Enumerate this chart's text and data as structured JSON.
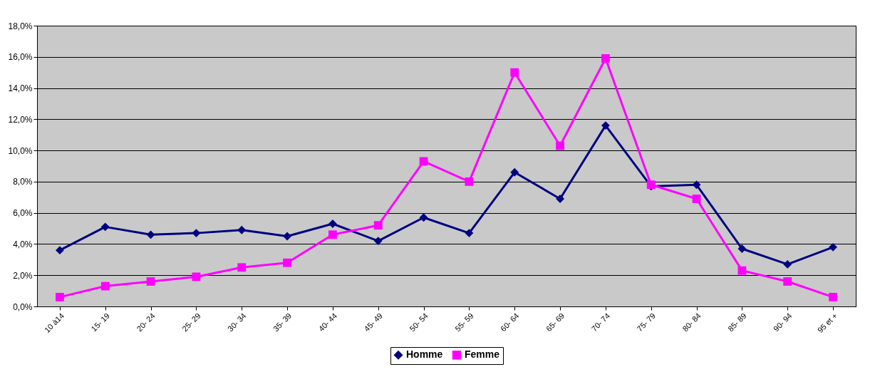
{
  "chart_data": {
    "type": "line",
    "categories": [
      "10 à14",
      "15- 19",
      "20- 24",
      "25- 29",
      "30- 34",
      "35- 39",
      "40- 44",
      "45- 49",
      "50- 54",
      "55- 59",
      "60- 64",
      "65- 69",
      "70- 74",
      "75- 79",
      "80- 84",
      "85- 89",
      "90- 94",
      "95 et +"
    ],
    "series": [
      {
        "name": "Homme",
        "color": "#000080",
        "marker": "diamond",
        "values": [
          3.6,
          5.1,
          4.6,
          4.7,
          4.9,
          4.5,
          5.3,
          4.2,
          5.7,
          4.7,
          8.6,
          6.9,
          11.6,
          7.7,
          7.8,
          3.7,
          2.7,
          3.8
        ]
      },
      {
        "name": "Femme",
        "color": "#ff00ff",
        "marker": "square",
        "values": [
          0.6,
          1.3,
          1.6,
          1.9,
          2.5,
          2.8,
          4.6,
          5.2,
          9.3,
          8.0,
          15.0,
          10.3,
          15.9,
          7.8,
          6.9,
          2.3,
          1.6,
          0.6
        ]
      }
    ],
    "ylim": [
      0,
      18
    ],
    "yticks": [
      {
        "value": 0,
        "label": "0,0%"
      },
      {
        "value": 2,
        "label": "2,0%"
      },
      {
        "value": 4,
        "label": "4,0%"
      },
      {
        "value": 6,
        "label": "6,0%"
      },
      {
        "value": 8,
        "label": "8,0%"
      },
      {
        "value": 10,
        "label": "10,0%"
      },
      {
        "value": 12,
        "label": "12,0%"
      },
      {
        "value": 14,
        "label": "14,0%"
      },
      {
        "value": 16,
        "label": "16,0%"
      },
      {
        "value": 18,
        "label": "18,0%"
      }
    ],
    "grid": "y",
    "legend": "bottom",
    "line_style": "solid"
  }
}
